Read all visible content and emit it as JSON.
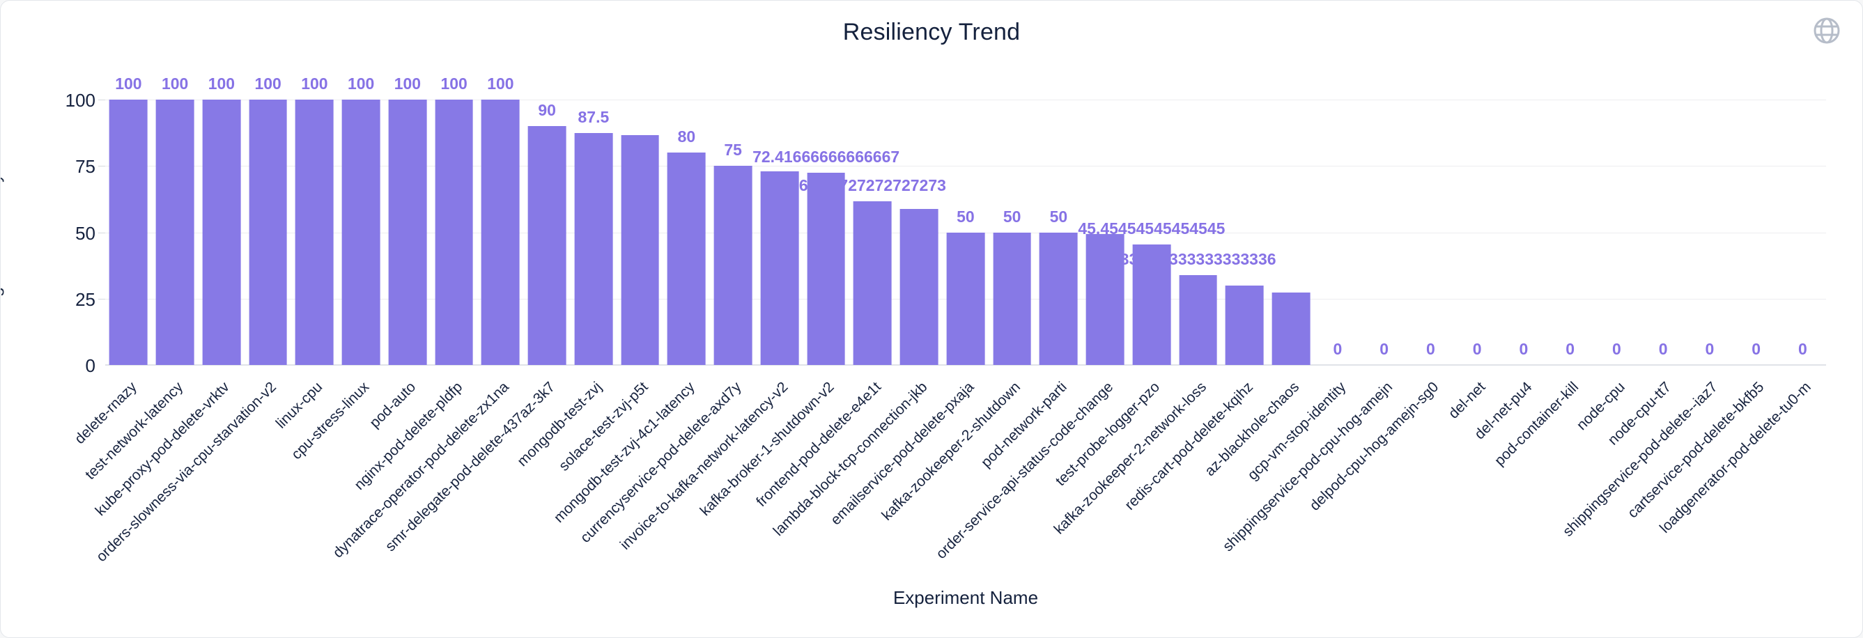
{
  "header": {
    "title": "Resiliency Trend",
    "globe_icon": "globe-icon",
    "globe_color": "#b6bdc9"
  },
  "chart_data": {
    "type": "bar",
    "title": "Resiliency Trend",
    "xlabel": "Experiment Name",
    "ylabel": "Average of Resiliency Score",
    "ylim": [
      0,
      100
    ],
    "yticks": [
      0,
      25,
      50,
      75,
      100
    ],
    "grid": true,
    "legend": "none",
    "bar_color": "#8779e6",
    "value_label_color": "#8672e5",
    "axis_text_color": "#15213e",
    "title_color": "#14213d",
    "categories": [
      "delete-rnazy",
      "test-network-latency",
      "kube-proxy-pod-delete-vrktv",
      "orders-slowness-via-cpu-starvation-v2",
      "linux-cpu",
      "cpu-stress-linux",
      "pod-auto",
      "nginx-pod-delete-pldfp",
      "dynatrace-operator-pod-delete-zx1na",
      "smr-delegate-pod-delete-437az-3k7",
      "mongodb-test-zvj",
      "solace-test-zvj-p5t",
      "mongodb-test-zvj-4c1-latency",
      "currencyservice-pod-delete-axd7y",
      "invoice-to-kafka-network-latency-v2",
      "kafka-broker-1-shutdown-v2",
      "frontend-pod-delete-e4e1t",
      "lambda-block-tcp-connection-jkb",
      "emailservice-pod-delete-pxaja",
      "kafka-zookeeper-2-shutdown",
      "pod-network-parti",
      "order-service-api-status-code-change",
      "test-probe-logger-pzo",
      "kafka-zookeeper-2-network-loss",
      "redis-cart-pod-delete-kqihz",
      "az-blackhole-chaos",
      "gcp-vm-stop-identity",
      "shippingservice-pod-cpu-hog-amejn",
      "delpod-cpu-hog-amejn-sg0",
      "del-net",
      "del-net-pu4",
      "pod-container-kill",
      "node-cpu",
      "node-cpu-tt7",
      "shippingservice-pod-delete--iaz7",
      "cartservice-pod-delete-bkfb5",
      "loadgenerator-pod-delete-tu0-m"
    ],
    "values": [
      100,
      100,
      100,
      100,
      100,
      100,
      100,
      100,
      100,
      90,
      87.5,
      86.6,
      80,
      75,
      72.9,
      72.41666666666667,
      61.72727272727273,
      58.8,
      50,
      50,
      50,
      49.3,
      45.45454545454545,
      33.833333333333336,
      30,
      27.3,
      0,
      0,
      0,
      0,
      0,
      0,
      0,
      0,
      0,
      0,
      0
    ],
    "value_labels_shown": [
      "100",
      "100",
      "100",
      "100",
      "100",
      "100",
      "100",
      "100",
      "100",
      "90",
      "87.5",
      "",
      "80",
      "75",
      "",
      "72.41666666666667",
      "61.72727272727273",
      "",
      "50",
      "50",
      "50",
      "",
      "45.45454545454545",
      "33.833333333333336",
      "",
      "",
      "0",
      "0",
      "0",
      "0",
      "0",
      "0",
      "0",
      "0",
      "0",
      "0",
      "0"
    ]
  }
}
